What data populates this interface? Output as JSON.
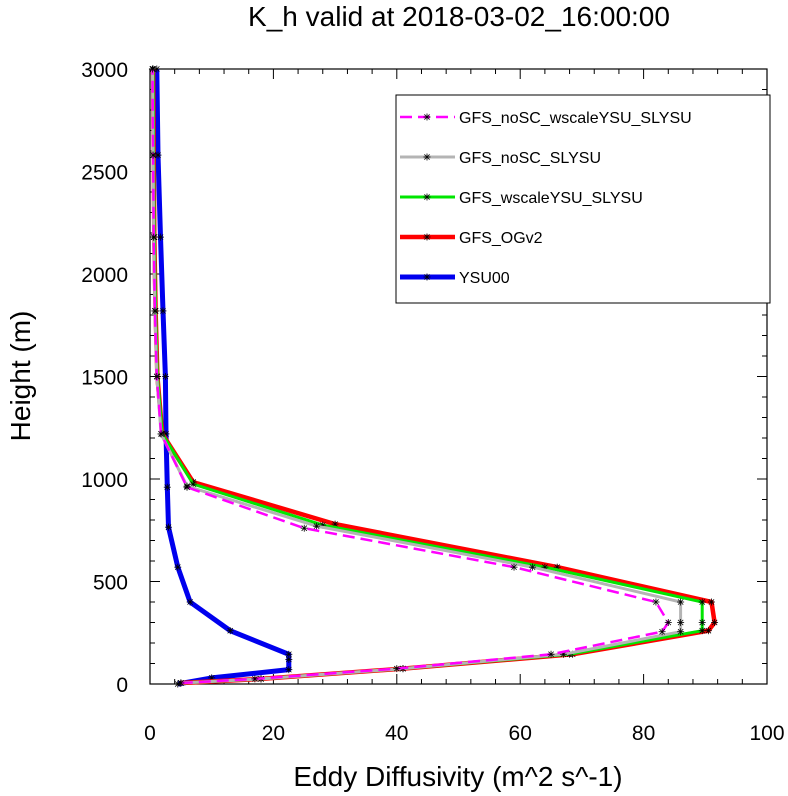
{
  "chart_data": {
    "type": "line",
    "title": "K_h valid at 2018-03-02_16:00:00",
    "xlabel": "Eddy Diffusivity (m^2 s^-1)",
    "ylabel": "Height (m)",
    "xlim": [
      0,
      100
    ],
    "ylim": [
      0,
      3000
    ],
    "xticks": [
      "0",
      "20",
      "40",
      "60",
      "80",
      "100"
    ],
    "yticks": [
      "0",
      "500",
      "1000",
      "1500",
      "2000",
      "2500",
      "3000"
    ],
    "legend_position": "top-right",
    "grid": false,
    "series": [
      {
        "name": "GFS_noSC_wscaleYSU_SLYSU",
        "color": "#ff00ff",
        "dash": "dashed",
        "width": 2.5,
        "x": [
          5,
          17,
          40,
          65,
          83,
          84,
          82,
          59,
          25,
          6,
          1.8,
          1.1,
          0.8,
          0.6,
          0.5,
          0.4
        ],
        "y": [
          5,
          25,
          75,
          145,
          255,
          300,
          400,
          570,
          760,
          960,
          1220,
          1500,
          1820,
          2180,
          2580,
          3000
        ]
      },
      {
        "name": "GFS_noSC_SLYSU",
        "color": "#b4b4b4",
        "dash": "solid",
        "width": 3,
        "x": [
          5,
          18,
          41,
          67,
          86,
          86,
          86,
          62,
          27,
          6,
          1.8,
          1.1,
          0.8,
          0.6,
          0.5,
          0.4
        ],
        "y": [
          5,
          25,
          75,
          145,
          255,
          300,
          400,
          570,
          770,
          965,
          1220,
          1500,
          1820,
          2180,
          2580,
          3000
        ]
      },
      {
        "name": "GFS_wscaleYSU_SLYSU",
        "color": "#00e600",
        "dash": "solid",
        "width": 3,
        "x": [
          5,
          18,
          41,
          68,
          89.5,
          89.5,
          89.5,
          64,
          28,
          7,
          2,
          1.2,
          0.9,
          0.7,
          0.6,
          0.5
        ],
        "y": [
          5,
          25,
          75,
          145,
          260,
          300,
          400,
          570,
          775,
          975,
          1220,
          1500,
          1820,
          2180,
          2580,
          3000
        ]
      },
      {
        "name": "GFS_OGv2",
        "color": "#ff0000",
        "dash": "solid",
        "width": 4.5,
        "x": [
          5,
          18,
          41,
          68.5,
          90.5,
          91.5,
          91,
          66,
          30,
          7,
          2,
          1.2,
          0.9,
          0.7,
          0.6,
          0.5
        ],
        "y": [
          5,
          25,
          75,
          145,
          260,
          300,
          400,
          570,
          780,
          985,
          1220,
          1500,
          1820,
          2180,
          2580,
          3000
        ]
      },
      {
        "name": "YSU00",
        "color": "#0000ee",
        "dash": "solid",
        "width": 5,
        "x": [
          4.5,
          10,
          22.5,
          22.5,
          22.5,
          13,
          6.5,
          4.5,
          3,
          2.8,
          2.6,
          2.5,
          2.1,
          1.7,
          1.3,
          1.1
        ],
        "y": [
          0,
          30,
          70,
          120,
          145,
          260,
          400,
          570,
          765,
          960,
          1220,
          1500,
          1820,
          2180,
          2580,
          3000
        ]
      }
    ]
  }
}
